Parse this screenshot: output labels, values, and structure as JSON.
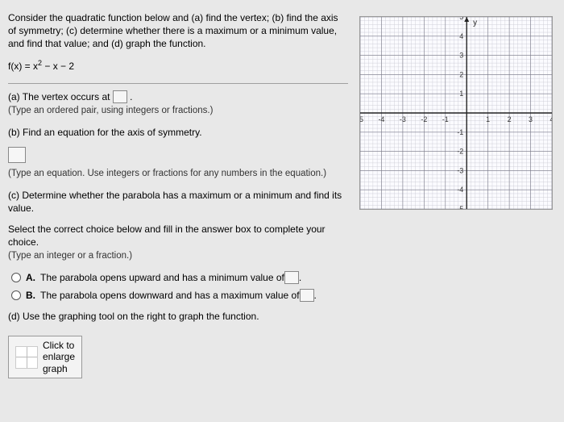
{
  "question": {
    "intro": "Consider the quadratic function below and (a) find the vertex; (b) find the axis of symmetry; (c) determine whether there is a maximum or a minimum value, and find that value; and (d) graph the function.",
    "fx_lhs": "f(x) = x",
    "fx_exp": "2",
    "fx_rhs": " − x − 2"
  },
  "partA": {
    "text": "(a) The vertex occurs at ",
    "period": ".",
    "hint": "(Type an ordered pair, using integers or fractions.)"
  },
  "partB": {
    "text": "(b) Find an equation for the axis of symmetry.",
    "hint": "(Type an equation. Use integers or fractions for any numbers in the equation.)"
  },
  "partC": {
    "text": "(c) Determine whether the parabola has a maximum or a minimum and find its value.",
    "select": "Select the correct choice below and fill in the answer box to complete your choice.",
    "type_hint": "(Type an integer or a fraction.)",
    "optA_letter": "A.",
    "optA_text": "The parabola opens upward and has a minimum value of ",
    "optB_letter": "B.",
    "optB_text": "The parabola opens downward and has a maximum value of ",
    "period": "."
  },
  "partD": {
    "text": "(d) Use the graphing tool on the right to graph the function."
  },
  "button": {
    "line1": "Click to",
    "line2": "enlarge",
    "line3": "graph"
  },
  "graph": {
    "xmin": -5,
    "xmax": 4,
    "ymin": -5,
    "ymax": 5,
    "x_ticks": [
      -5,
      -4,
      -3,
      -2,
      -1,
      1,
      2,
      3,
      4
    ],
    "y_ticks": [
      -5,
      -4,
      -3,
      -2,
      -1,
      1,
      2,
      3,
      4,
      5
    ],
    "minor_per_major": 5,
    "axis_color": "#222222",
    "major_grid_color": "#7a7a88",
    "minor_grid_color": "#c8c8d0",
    "bg_color": "#fbfbff",
    "tick_fontsize": 9,
    "y_label": "y"
  }
}
